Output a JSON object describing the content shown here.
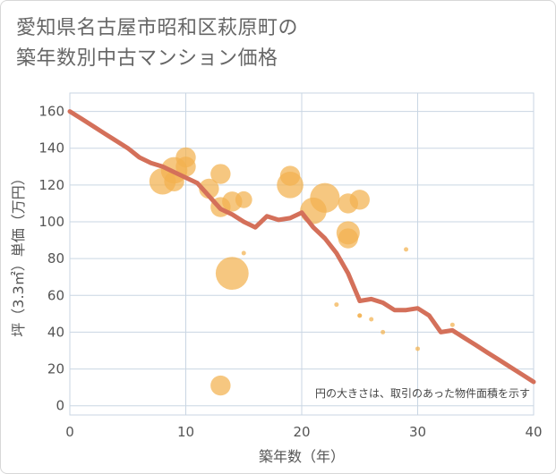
{
  "title": {
    "line1": "愛知県名古屋市昭和区萩原町の",
    "line2": "築年数別中古マンション価格"
  },
  "chart_data": {
    "type": "scatter",
    "xlabel": "築年数（年）",
    "ylabel": "坪（3.3㎡）単価（万円）",
    "xlim": [
      0,
      40
    ],
    "ylim": [
      -5,
      170
    ],
    "xticks": [
      0,
      10,
      20,
      30,
      40
    ],
    "yticks": [
      0,
      20,
      40,
      60,
      80,
      100,
      120,
      140,
      160
    ],
    "grid": true,
    "note": "円の大きさは、取引のあった物件面積を示す",
    "colors": {
      "bubble": "#f2b24f",
      "line": "#d4705a",
      "grid": "#c9d6e3"
    },
    "points": [
      {
        "x": 8,
        "y": 122,
        "size": 3
      },
      {
        "x": 9,
        "y": 128,
        "size": 3
      },
      {
        "x": 9,
        "y": 122,
        "size": 2
      },
      {
        "x": 10,
        "y": 135,
        "size": 2
      },
      {
        "x": 10,
        "y": 130,
        "size": 2
      },
      {
        "x": 12,
        "y": 118,
        "size": 2
      },
      {
        "x": 13,
        "y": 126,
        "size": 2
      },
      {
        "x": 13,
        "y": 108,
        "size": 2
      },
      {
        "x": 14,
        "y": 111,
        "size": 2
      },
      {
        "x": 14,
        "y": 72,
        "size": 4
      },
      {
        "x": 13,
        "y": 11,
        "size": 2
      },
      {
        "x": 15,
        "y": 112,
        "size": 1.5
      },
      {
        "x": 15,
        "y": 83,
        "size": 0.3
      },
      {
        "x": 19,
        "y": 125,
        "size": 2
      },
      {
        "x": 19,
        "y": 120,
        "size": 3
      },
      {
        "x": 21,
        "y": 106,
        "size": 3
      },
      {
        "x": 22,
        "y": 113,
        "size": 3.5
      },
      {
        "x": 23,
        "y": 55,
        "size": 0.3
      },
      {
        "x": 24,
        "y": 110,
        "size": 2
      },
      {
        "x": 24,
        "y": 94,
        "size": 2.5
      },
      {
        "x": 24,
        "y": 91,
        "size": 2
      },
      {
        "x": 25,
        "y": 112,
        "size": 2
      },
      {
        "x": 25,
        "y": 49,
        "size": 0.3
      },
      {
        "x": 25,
        "y": 49,
        "size": 0.3
      },
      {
        "x": 26,
        "y": 47,
        "size": 0.3
      },
      {
        "x": 27,
        "y": 40,
        "size": 0.3
      },
      {
        "x": 29,
        "y": 85,
        "size": 0.3
      },
      {
        "x": 30,
        "y": 31,
        "size": 0.3
      },
      {
        "x": 33,
        "y": 44,
        "size": 0.3
      }
    ],
    "trend": {
      "x": [
        0,
        1,
        2,
        3,
        4,
        5,
        6,
        7,
        8,
        9,
        10,
        11,
        12,
        13,
        14,
        15,
        16,
        17,
        18,
        19,
        20,
        21,
        22,
        23,
        24,
        25,
        26,
        27,
        28,
        29,
        30,
        31,
        32,
        33,
        34,
        35,
        36,
        37,
        38,
        39,
        40
      ],
      "y": [
        160,
        156,
        152,
        148,
        144,
        140,
        135,
        132,
        130,
        127,
        124,
        121,
        114,
        107,
        104,
        100,
        97,
        103,
        101,
        102,
        105,
        97,
        91,
        83,
        72,
        57,
        58,
        56,
        52,
        52,
        53,
        49,
        40,
        41,
        37,
        33,
        29,
        25,
        21,
        17,
        13
      ]
    }
  }
}
